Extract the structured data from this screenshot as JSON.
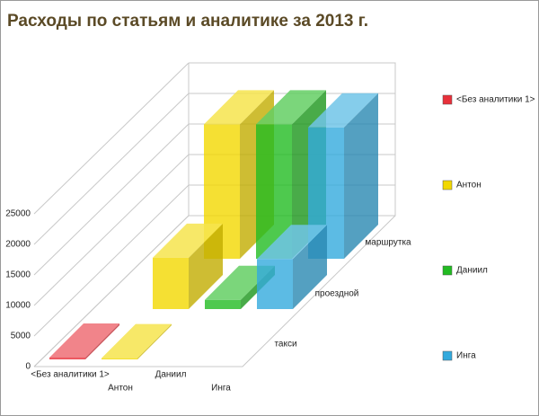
{
  "chart_data": {
    "type": "bar3d",
    "title": "Расходы по статьям и аналитике за 2013 г.",
    "categories": [
      "такси",
      "проездной",
      "маршрутка"
    ],
    "series": [
      {
        "name": "<Без аналитики 1>",
        "color": "#e8303a",
        "values": [
          300,
          null,
          null
        ]
      },
      {
        "name": "Антон",
        "color": "#f2d800",
        "values": [
          200,
          8400,
          22000
        ]
      },
      {
        "name": "Даниил",
        "color": "#22bb22",
        "values": [
          null,
          1500,
          22000
        ]
      },
      {
        "name": "Инга",
        "color": "#33aadd",
        "values": [
          null,
          8200,
          21500
        ]
      }
    ],
    "ylim": [
      0,
      25000
    ],
    "yticks": [
      0,
      5000,
      10000,
      15000,
      20000,
      25000
    ],
    "grid": true,
    "legend": "right"
  }
}
